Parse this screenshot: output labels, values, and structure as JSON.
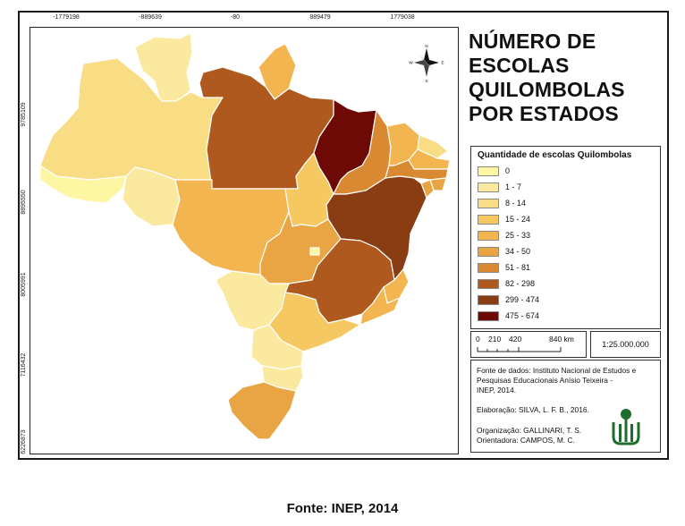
{
  "map": {
    "title_lines": [
      "NÚMERO DE",
      "ESCOLAS",
      "QUILOMBOLAS",
      "POR ESTADOS"
    ],
    "x_ticks": [
      "-1779198",
      "-889639",
      "-80",
      "889479",
      "1779038"
    ],
    "y_ticks": [
      "9785109",
      "8895550",
      "8005991",
      "7116432",
      "6226873"
    ],
    "compass_letters": {
      "n": "N",
      "s": "S",
      "e": "E",
      "w": "W"
    }
  },
  "legend": {
    "title": "Quantidade de escolas Quilombolas",
    "classes": [
      {
        "label": "0",
        "color": "#fdf6a3"
      },
      {
        "label": "1 - 7",
        "color": "#fbe9a0"
      },
      {
        "label": "8 - 14",
        "color": "#f8dd85"
      },
      {
        "label": "15 - 24",
        "color": "#f6c862"
      },
      {
        "label": "25 - 33",
        "color": "#f2b550"
      },
      {
        "label": "34 - 50",
        "color": "#e9a443"
      },
      {
        "label": "51 - 81",
        "color": "#d88932"
      },
      {
        "label": "82 - 298",
        "color": "#b0591e"
      },
      {
        "label": "299 - 474",
        "color": "#8a3c12"
      },
      {
        "label": "475 - 674",
        "color": "#6e0a06"
      }
    ]
  },
  "scale": {
    "labels": [
      "0",
      "210",
      "420",
      "840 km"
    ],
    "ratio": "1:25.000.000"
  },
  "credits": {
    "source_lines": [
      "Fonte de dados: Instituto Nacional de Estudos e",
      "Pesquisas Educacionais Anísio Teixeira -",
      "INEP, 2014."
    ],
    "elaboration": "Elaboração: SILVA, L. F. B., 2016.",
    "organization": "Organização: GALLINARI, T. S.",
    "orientation": "Orientadora: CAMPOS, M. C."
  },
  "caption": "Fonte: INEP, 2014",
  "states": [
    {
      "id": "RR",
      "color": "#fbe9a0"
    },
    {
      "id": "AM",
      "color": "#f8dd85"
    },
    {
      "id": "AC",
      "color": "#fdf6a3"
    },
    {
      "id": "RO",
      "color": "#fbe9a0"
    },
    {
      "id": "AP",
      "color": "#f2b550"
    },
    {
      "id": "PA",
      "color": "#b0591e"
    },
    {
      "id": "MT",
      "color": "#f2b550"
    },
    {
      "id": "TO",
      "color": "#f6c862"
    },
    {
      "id": "MA",
      "color": "#6e0a06"
    },
    {
      "id": "PI",
      "color": "#d88932"
    },
    {
      "id": "CE",
      "color": "#f2b550"
    },
    {
      "id": "RN",
      "color": "#f8dd85"
    },
    {
      "id": "PB",
      "color": "#f2b550"
    },
    {
      "id": "PE",
      "color": "#d88932"
    },
    {
      "id": "AL",
      "color": "#e9a443"
    },
    {
      "id": "SE",
      "color": "#e9a443"
    },
    {
      "id": "BA",
      "color": "#8a3c12"
    },
    {
      "id": "GO",
      "color": "#e9a443"
    },
    {
      "id": "DF",
      "color": "#fdf6a3"
    },
    {
      "id": "MG",
      "color": "#b0591e"
    },
    {
      "id": "ES",
      "color": "#f2b550"
    },
    {
      "id": "RJ",
      "color": "#f2b550"
    },
    {
      "id": "MS",
      "color": "#fbe9a0"
    },
    {
      "id": "SP",
      "color": "#f6c862"
    },
    {
      "id": "PR",
      "color": "#fbe9a0"
    },
    {
      "id": "SC",
      "color": "#fbe9a0"
    },
    {
      "id": "RS",
      "color": "#e9a443"
    }
  ]
}
